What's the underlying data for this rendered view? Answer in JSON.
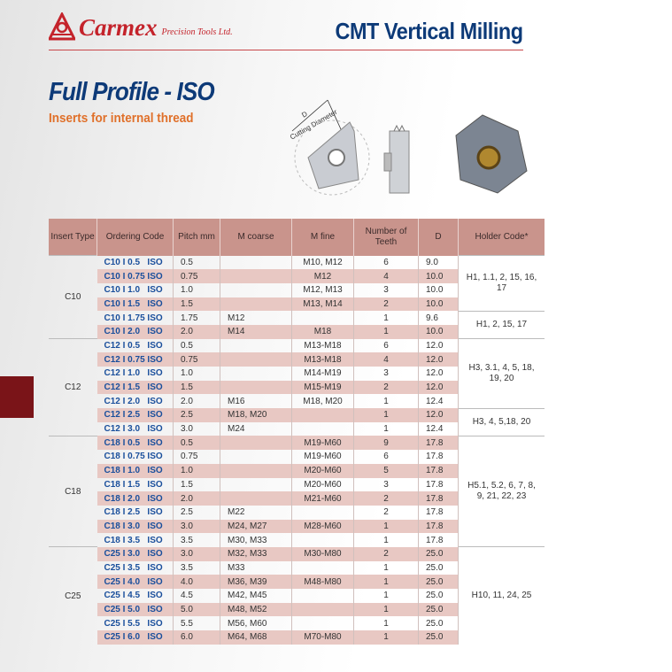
{
  "header": {
    "brand": "Carmex",
    "brand_sub": "Precision Tools Ltd.",
    "section_title": "CMT Vertical Milling"
  },
  "title": "Full Profile - ISO",
  "subtitle": "Inserts for internal thread",
  "drawing": {
    "label_d": "D",
    "label_cutting": "Cutting Diameter"
  },
  "colors": {
    "header_bg": "#c9948c",
    "stripe": "#e8c8c3",
    "code": "#1a4f9c",
    "title": "#0d3a78",
    "subtitle": "#e0702a",
    "brand": "#c4232b"
  },
  "table": {
    "columns": [
      "Insert Type",
      "Ordering Code",
      "Pitch mm",
      "M coarse",
      "M fine",
      "Number of Teeth",
      "D",
      "Holder Code*"
    ],
    "groups": [
      {
        "type": "C10",
        "start": 0,
        "count": 6
      },
      {
        "type": "C12",
        "start": 6,
        "count": 7
      },
      {
        "type": "C18",
        "start": 13,
        "count": 8
      },
      {
        "type": "C25",
        "start": 21,
        "count": 7
      }
    ],
    "holders": [
      {
        "code": "H1, 1.1, 2, 15, 16, 17",
        "start": 0,
        "count": 4
      },
      {
        "code": "H1, 2, 15, 17",
        "start": 4,
        "count": 2
      },
      {
        "code": "H3, 3.1, 4, 5, 18, 19, 20",
        "start": 6,
        "count": 5
      },
      {
        "code": "H3, 4, 5,18, 20",
        "start": 11,
        "count": 2
      },
      {
        "code": "H5.1, 5.2, 6, 7, 8, 9, 21, 22, 23",
        "start": 13,
        "count": 8
      },
      {
        "code": "H10, 11, 24, 25",
        "start": 21,
        "count": 7
      }
    ],
    "rows": [
      [
        "C10 I 0.5   ISO",
        "0.5",
        "",
        "M10, M12",
        "6",
        "9.0"
      ],
      [
        "C10 I 0.75 ISO",
        "0.75",
        "",
        "M12",
        "4",
        "10.0"
      ],
      [
        "C10 I 1.0   ISO",
        "1.0",
        "",
        "M12, M13",
        "3",
        "10.0"
      ],
      [
        "C10 I 1.5   ISO",
        "1.5",
        "",
        "M13, M14",
        "2",
        "10.0"
      ],
      [
        "C10 I 1.75 ISO",
        "1.75",
        "M12",
        "",
        "1",
        "9.6"
      ],
      [
        "C10 I 2.0   ISO",
        "2.0",
        "M14",
        "M18",
        "1",
        "10.0"
      ],
      [
        "C12 I 0.5   ISO",
        "0.5",
        "",
        "M13-M18",
        "6",
        "12.0"
      ],
      [
        "C12 I 0.75 ISO",
        "0.75",
        "",
        "M13-M18",
        "4",
        "12.0"
      ],
      [
        "C12 I 1.0   ISO",
        "1.0",
        "",
        "M14-M19",
        "3",
        "12.0"
      ],
      [
        "C12 I 1.5   ISO",
        "1.5",
        "",
        "M15-M19",
        "2",
        "12.0"
      ],
      [
        "C12 I 2.0   ISO",
        "2.0",
        "M16",
        "M18, M20",
        "1",
        "12.4"
      ],
      [
        "C12 I 2.5   ISO",
        "2.5",
        "M18, M20",
        "",
        "1",
        "12.0"
      ],
      [
        "C12 I 3.0   ISO",
        "3.0",
        "M24",
        "",
        "1",
        "12.4"
      ],
      [
        "C18 I 0.5   ISO",
        "0.5",
        "",
        "M19-M60",
        "9",
        "17.8"
      ],
      [
        "C18 I 0.75 ISO",
        "0.75",
        "",
        "M19-M60",
        "6",
        "17.8"
      ],
      [
        "C18 I 1.0   ISO",
        "1.0",
        "",
        "M20-M60",
        "5",
        "17.8"
      ],
      [
        "C18 I 1.5   ISO",
        "1.5",
        "",
        "M20-M60",
        "3",
        "17.8"
      ],
      [
        "C18 I 2.0   ISO",
        "2.0",
        "",
        "M21-M60",
        "2",
        "17.8"
      ],
      [
        "C18 I 2.5   ISO",
        "2.5",
        "M22",
        "",
        "2",
        "17.8"
      ],
      [
        "C18 I 3.0   ISO",
        "3.0",
        "M24, M27",
        "M28-M60",
        "1",
        "17.8"
      ],
      [
        "C18 I 3.5   ISO",
        "3.5",
        "M30, M33",
        "",
        "1",
        "17.8"
      ],
      [
        "C25 I 3.0   ISO",
        "3.0",
        "M32, M33",
        "M30-M80",
        "2",
        "25.0"
      ],
      [
        "C25 I 3.5   ISO",
        "3.5",
        "M33",
        "",
        "1",
        "25.0"
      ],
      [
        "C25 I 4.0   ISO",
        "4.0",
        "M36, M39",
        "M48-M80",
        "1",
        "25.0"
      ],
      [
        "C25 I 4.5   ISO",
        "4.5",
        "M42, M45",
        "",
        "1",
        "25.0"
      ],
      [
        "C25 I 5.0   ISO",
        "5.0",
        "M48, M52",
        "",
        "1",
        "25.0"
      ],
      [
        "C25 I 5.5   ISO",
        "5.5",
        "M56, M60",
        "",
        "1",
        "25.0"
      ],
      [
        "C25 I 6.0   ISO",
        "6.0",
        "M64, M68",
        "M70-M80",
        "1",
        "25.0"
      ]
    ]
  }
}
